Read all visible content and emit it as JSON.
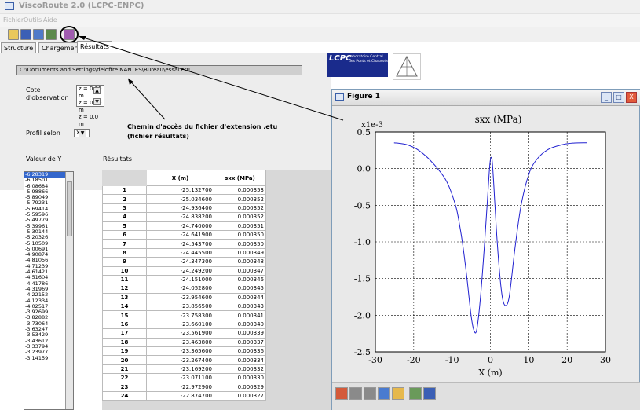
{
  "app": {
    "title": "ViscoRoute 2.0 (LCPC-ENPC)"
  },
  "menu": [
    "Fichier",
    "Outils",
    "Aide"
  ],
  "toolbar": {
    "icons": [
      "open-icon",
      "save-icon",
      "save-as-icon",
      "export-icon",
      "chart-icon"
    ]
  },
  "tabs": [
    {
      "label": "Structure"
    },
    {
      "label": "Chargement"
    },
    {
      "label": "Résultats"
    }
  ],
  "file_path": "C:\\Documents and Settings\\deloffre.NANTES\\Bureau\\essai.etu",
  "cote": {
    "label_line1": "Cote",
    "label_line2": "d'observation",
    "options": [
      "z = 0.39 m",
      "z = 0.39 m",
      "z = 0.0 m"
    ]
  },
  "profil": {
    "label": "Profil selon",
    "value": "X"
  },
  "annotation": {
    "line1": "Chemin d'accès du fichier d'extension .etu",
    "line2": "(fichier résultats)"
  },
  "y_list": {
    "label": "Valeur de Y",
    "values": [
      "-6.28319",
      "-6.18501",
      "-6.08684",
      "-5.98866",
      "-5.89049",
      "-5.79231",
      "-5.69414",
      "-5.59596",
      "-5.49779",
      "-5.39961",
      "-5.30144",
      "-5.20326",
      "-5.10509",
      "-5.00691",
      "-4.90874",
      "-4.81056",
      "-4.71239",
      "-4.61421",
      "-4.51604",
      "-4.41786",
      "-4.31969",
      "-4.22152",
      "-4.12334",
      "-4.02517",
      "-3.92699",
      "-3.82882",
      "-3.73064",
      "-3.63247",
      "-3.53429",
      "-3.43612",
      "-3.33794",
      "-3.23977",
      "-3.14159"
    ]
  },
  "results": {
    "label": "Résultats",
    "headers": [
      "X (m)",
      "sxx (MPa)"
    ],
    "rows": [
      [
        "1",
        "-25.132700",
        "0.000353"
      ],
      [
        "2",
        "-25.034600",
        "0.000352"
      ],
      [
        "3",
        "-24.936400",
        "0.000352"
      ],
      [
        "4",
        "-24.838200",
        "0.000352"
      ],
      [
        "5",
        "-24.740000",
        "0.000351"
      ],
      [
        "6",
        "-24.641900",
        "0.000350"
      ],
      [
        "7",
        "-24.543700",
        "0.000350"
      ],
      [
        "8",
        "-24.445500",
        "0.000349"
      ],
      [
        "9",
        "-24.347300",
        "0.000348"
      ],
      [
        "10",
        "-24.249200",
        "0.000347"
      ],
      [
        "11",
        "-24.151000",
        "0.000346"
      ],
      [
        "12",
        "-24.052800",
        "0.000345"
      ],
      [
        "13",
        "-23.954600",
        "0.000344"
      ],
      [
        "14",
        "-23.856500",
        "0.000343"
      ],
      [
        "15",
        "-23.758300",
        "0.000341"
      ],
      [
        "16",
        "-23.660100",
        "0.000340"
      ],
      [
        "17",
        "-23.561900",
        "0.000339"
      ],
      [
        "18",
        "-23.463800",
        "0.000337"
      ],
      [
        "19",
        "-23.365600",
        "0.000336"
      ],
      [
        "20",
        "-23.267400",
        "0.000334"
      ],
      [
        "21",
        "-23.169200",
        "0.000332"
      ],
      [
        "22",
        "-23.071100",
        "0.000330"
      ],
      [
        "23",
        "-22.972900",
        "0.000329"
      ],
      [
        "24",
        "-22.874700",
        "0.000327"
      ]
    ]
  },
  "logos": {
    "lcpc_big": "LCPC",
    "lcpc_line1": "Laboratoire Central",
    "lcpc_line2": "des Ponts et Chaussées"
  },
  "figure": {
    "window_title": "Figure 1",
    "window_buttons": [
      "_",
      "□",
      "X"
    ],
    "tools": [
      "home-icon",
      "back-icon",
      "forward-icon",
      "pan-icon",
      "zoom-icon",
      "configure-icon",
      "save-icon"
    ]
  },
  "chart_data": {
    "type": "line",
    "title": "sxx (MPa)",
    "xlabel": "X (m)",
    "ylabel": "",
    "scale_label": "x1e-3",
    "xlim": [
      -30,
      30
    ],
    "ylim": [
      -2.5,
      0.5
    ],
    "xticks": [
      "-30",
      "-20",
      "-10",
      "0",
      "10",
      "20",
      "30"
    ],
    "yticks": [
      "0.5",
      "0.0",
      "-0.5",
      "-1.0",
      "-1.5",
      "-2.0",
      "-2.5"
    ],
    "grid": true,
    "series": [
      {
        "color": "#2020d0",
        "x": [
          -25.13,
          -22,
          -19,
          -16,
          -13,
          -11,
          -9,
          -8,
          -7,
          -6,
          -5,
          -4.2,
          -3.5,
          -2.5,
          -1.5,
          -0.8,
          -0.3,
          0,
          0.4,
          0.8,
          1.2,
          1.8,
          2.5,
          3.2,
          4,
          4.8,
          5.5,
          6.5,
          8,
          10,
          12,
          15,
          19,
          22,
          25.13
        ],
        "y": [
          0.353,
          0.33,
          0.26,
          0.13,
          -0.05,
          -0.22,
          -0.52,
          -0.78,
          -1.12,
          -1.55,
          -2.02,
          -2.22,
          -2.18,
          -1.7,
          -1.0,
          -0.45,
          -0.05,
          0.12,
          0.13,
          -0.15,
          -0.52,
          -1.02,
          -1.48,
          -1.78,
          -1.87,
          -1.78,
          -1.5,
          -1.05,
          -0.5,
          -0.08,
          0.12,
          0.26,
          0.33,
          0.35,
          0.353
        ]
      }
    ]
  }
}
